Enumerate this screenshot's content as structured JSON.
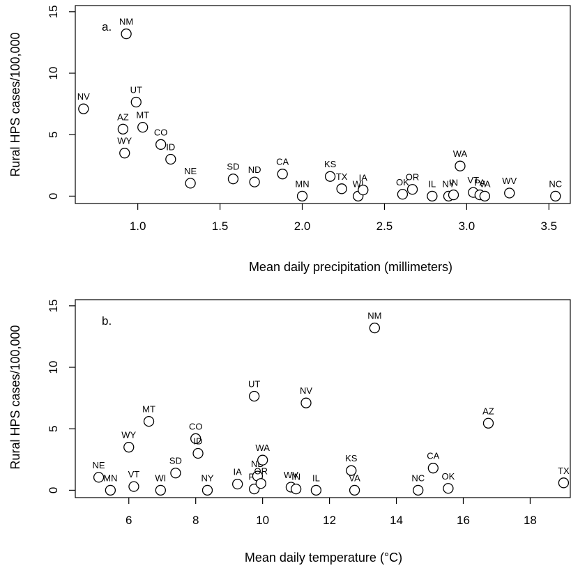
{
  "chart_data": [
    {
      "type": "scatter",
      "panel_label": "a.",
      "xlabel": "Mean daily precipitation (millimeters)",
      "ylabel": "Rural HPS cases/100,000",
      "xlim": [
        0.62,
        3.63
      ],
      "ylim": [
        -0.6,
        15.5
      ],
      "xticks": [
        1.0,
        1.5,
        2.0,
        2.5,
        3.0,
        3.5
      ],
      "xtick_labels": [
        "1.0",
        "1.5",
        "2.0",
        "2.5",
        "3.0",
        "3.5"
      ],
      "yticks": [
        0,
        5,
        10,
        15
      ],
      "ytick_labels": [
        "0",
        "5",
        "10",
        "15"
      ],
      "points": [
        {
          "label": "NM",
          "x": 0.93,
          "y": 13.2
        },
        {
          "label": "NV",
          "x": 0.67,
          "y": 7.1
        },
        {
          "label": "UT",
          "x": 0.99,
          "y": 7.65
        },
        {
          "label": "AZ",
          "x": 0.91,
          "y": 5.45
        },
        {
          "label": "MT",
          "x": 1.03,
          "y": 5.6
        },
        {
          "label": "WY",
          "x": 0.92,
          "y": 3.5
        },
        {
          "label": "CO",
          "x": 1.14,
          "y": 4.2
        },
        {
          "label": "ID",
          "x": 1.2,
          "y": 3.0
        },
        {
          "label": "NE",
          "x": 1.32,
          "y": 1.05
        },
        {
          "label": "SD",
          "x": 1.58,
          "y": 1.4
        },
        {
          "label": "ND",
          "x": 1.71,
          "y": 1.15
        },
        {
          "label": "CA",
          "x": 1.88,
          "y": 1.8
        },
        {
          "label": "MN",
          "x": 2.0,
          "y": 0.0
        },
        {
          "label": "KS",
          "x": 2.17,
          "y": 1.6
        },
        {
          "label": "TX",
          "x": 2.24,
          "y": 0.6
        },
        {
          "label": "WI",
          "x": 2.34,
          "y": 0.0
        },
        {
          "label": "IA",
          "x": 2.37,
          "y": 0.5
        },
        {
          "label": "OK",
          "x": 2.61,
          "y": 0.15
        },
        {
          "label": "OR",
          "x": 2.67,
          "y": 0.55
        },
        {
          "label": "IL",
          "x": 2.79,
          "y": 0.0
        },
        {
          "label": "NY",
          "x": 2.89,
          "y": 0.0
        },
        {
          "label": "IN",
          "x": 2.92,
          "y": 0.1
        },
        {
          "label": "WA",
          "x": 2.96,
          "y": 2.45
        },
        {
          "label": "VT",
          "x": 3.04,
          "y": 0.3
        },
        {
          "label": "PA",
          "x": 3.08,
          "y": 0.1
        },
        {
          "label": "VA",
          "x": 3.11,
          "y": 0.0
        },
        {
          "label": "WV",
          "x": 3.26,
          "y": 0.25
        },
        {
          "label": "NC",
          "x": 3.54,
          "y": 0.0
        }
      ]
    },
    {
      "type": "scatter",
      "panel_label": "b.",
      "xlabel": "Mean daily temperature (°C)",
      "ylabel": "Rural HPS cases/100,000",
      "xlim": [
        4.4,
        19.2
      ],
      "ylim": [
        -0.6,
        15.5
      ],
      "xticks": [
        6,
        8,
        10,
        12,
        14,
        16,
        18
      ],
      "xtick_labels": [
        "6",
        "8",
        "10",
        "12",
        "14",
        "16",
        "18"
      ],
      "yticks": [
        0,
        5,
        10,
        15
      ],
      "ytick_labels": [
        "0",
        "5",
        "10",
        "15"
      ],
      "points": [
        {
          "label": "NE",
          "x": 5.1,
          "y": 1.05
        },
        {
          "label": "MN",
          "x": 5.45,
          "y": 0.0
        },
        {
          "label": "WY",
          "x": 6.0,
          "y": 3.5
        },
        {
          "label": "VT",
          "x": 6.15,
          "y": 0.3
        },
        {
          "label": "MT",
          "x": 6.6,
          "y": 5.6
        },
        {
          "label": "WI",
          "x": 6.95,
          "y": 0.0
        },
        {
          "label": "SD",
          "x": 7.4,
          "y": 1.4
        },
        {
          "label": "CO",
          "x": 8.0,
          "y": 4.2
        },
        {
          "label": "ID",
          "x": 8.07,
          "y": 3.0
        },
        {
          "label": "NY",
          "x": 8.35,
          "y": 0.0
        },
        {
          "label": "IA",
          "x": 9.25,
          "y": 0.5
        },
        {
          "label": "PA",
          "x": 9.75,
          "y": 0.1
        },
        {
          "label": "UT",
          "x": 9.75,
          "y": 7.65
        },
        {
          "label": "ND",
          "x": 9.85,
          "y": 1.15
        },
        {
          "label": "OR",
          "x": 9.95,
          "y": 0.55
        },
        {
          "label": "WA",
          "x": 10.0,
          "y": 2.45
        },
        {
          "label": "WV",
          "x": 10.85,
          "y": 0.25
        },
        {
          "label": "IN",
          "x": 11.0,
          "y": 0.1
        },
        {
          "label": "NV",
          "x": 11.3,
          "y": 7.1
        },
        {
          "label": "IL",
          "x": 11.6,
          "y": 0.0
        },
        {
          "label": "KS",
          "x": 12.65,
          "y": 1.6
        },
        {
          "label": "VA",
          "x": 12.75,
          "y": 0.0
        },
        {
          "label": "NM",
          "x": 13.35,
          "y": 13.2
        },
        {
          "label": "NC",
          "x": 14.65,
          "y": 0.0
        },
        {
          "label": "CA",
          "x": 15.1,
          "y": 1.8
        },
        {
          "label": "OK",
          "x": 15.55,
          "y": 0.15
        },
        {
          "label": "AZ",
          "x": 16.75,
          "y": 5.45
        },
        {
          "label": "TX",
          "x": 19.0,
          "y": 0.6
        }
      ]
    }
  ]
}
